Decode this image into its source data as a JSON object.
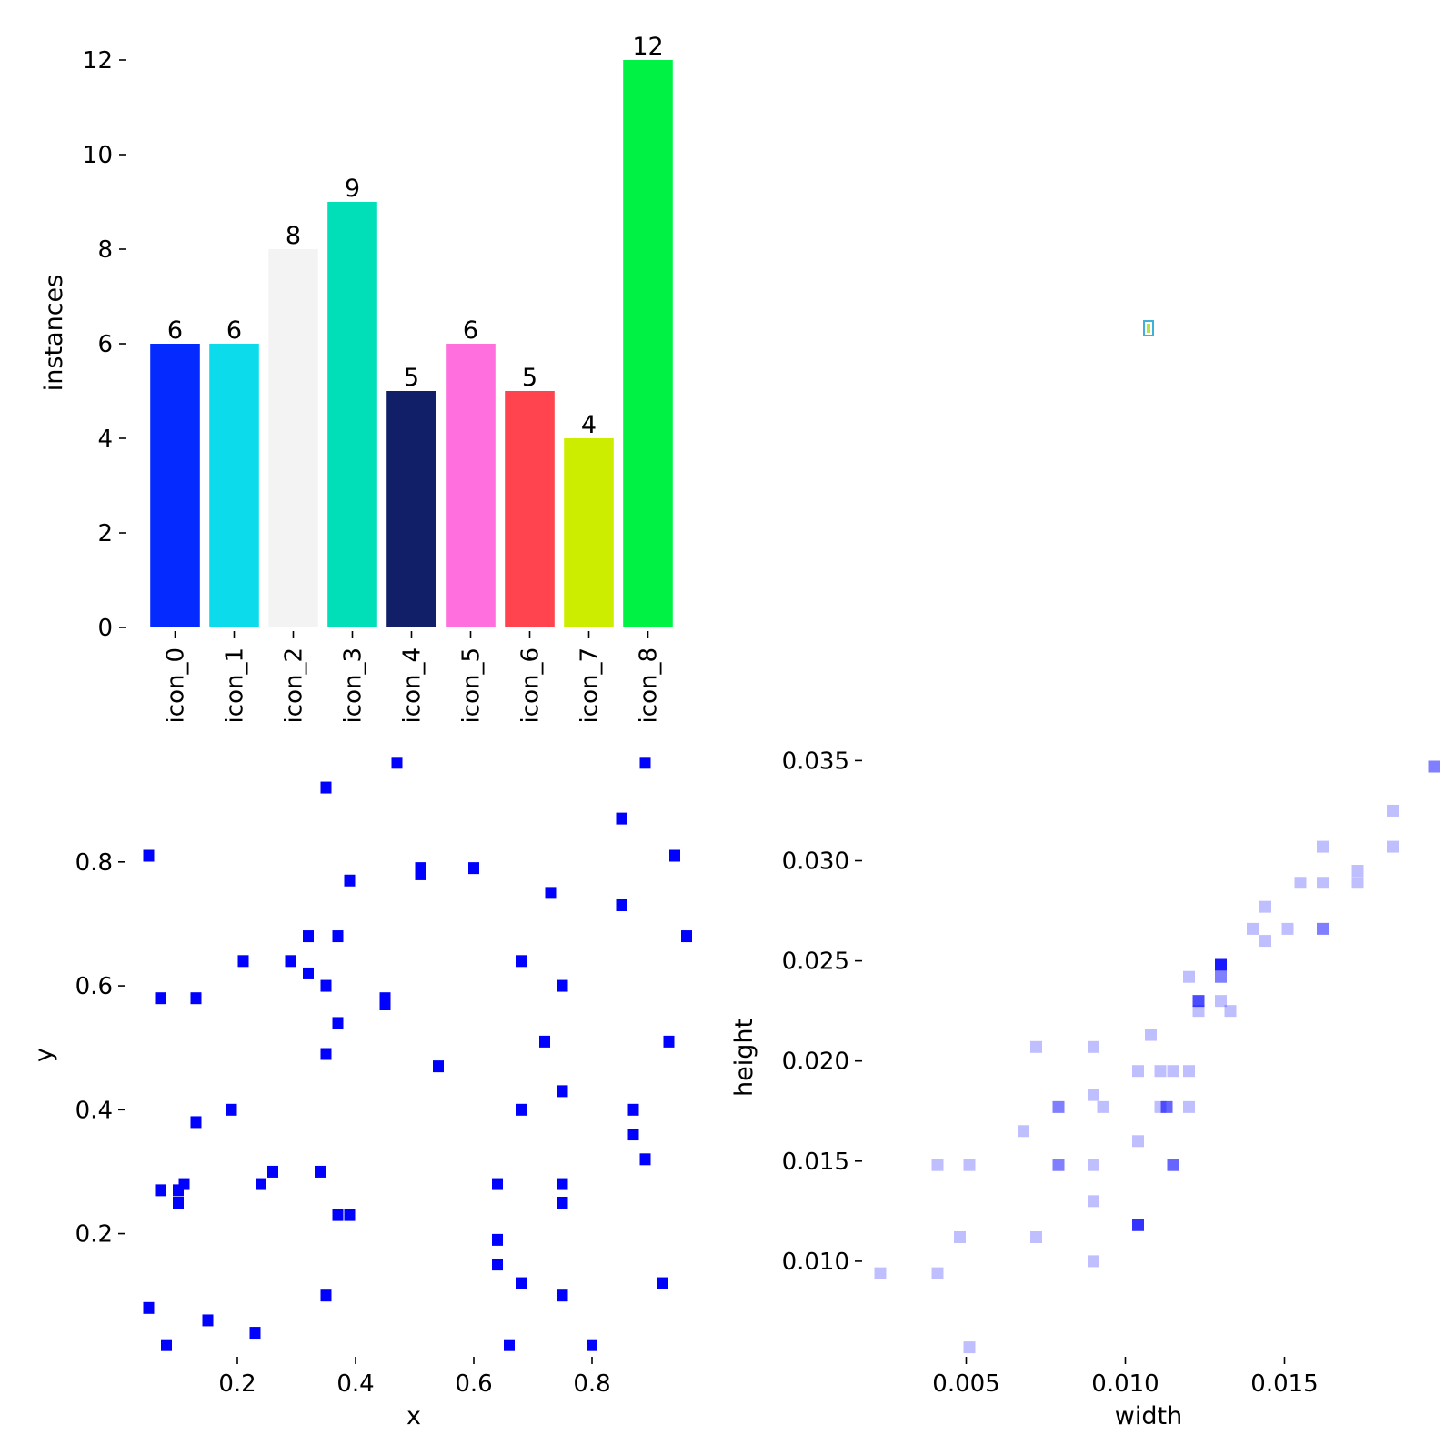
{
  "chart_data": [
    {
      "type": "bar",
      "categories": [
        "icon_0",
        "icon_1",
        "icon_2",
        "icon_3",
        "icon_4",
        "icon_5",
        "icon_6",
        "icon_7",
        "icon_8"
      ],
      "values": [
        6,
        6,
        8,
        9,
        5,
        6,
        5,
        4,
        12
      ],
      "value_labels": [
        "6",
        "6",
        "8",
        "9",
        "5",
        "6",
        "5",
        "4",
        "12"
      ],
      "colors": [
        "#042aff",
        "#0bdbeb",
        "#f3f3f3",
        "#00dfb7",
        "#111f68",
        "#ff6fdd",
        "#ff444f",
        "#cced00",
        "#00f344"
      ],
      "ylabel": "instances",
      "ylim": [
        0,
        12
      ],
      "yticks": [
        0,
        2,
        4,
        6,
        8,
        10,
        12
      ],
      "ytick_labels": [
        "0",
        "2",
        "4",
        "6",
        "8",
        "10",
        "12"
      ],
      "grid": false
    },
    {
      "type": "heatmap",
      "description_marker": "box-outline",
      "marker_color": "#3fb0d8",
      "inner_color": "#b8e04a",
      "axes_visible": false
    },
    {
      "type": "heatmap",
      "color": "#0000ff",
      "xlabel": "x",
      "ylabel": "y",
      "xlim": [
        0.02,
        0.98
      ],
      "ylim": [
        0.01,
        0.97
      ],
      "xticks": [
        0.2,
        0.4,
        0.6,
        0.8
      ],
      "xtick_labels": [
        "0.2",
        "0.4",
        "0.6",
        "0.8"
      ],
      "yticks": [
        0.2,
        0.4,
        0.6,
        0.8
      ],
      "ytick_labels": [
        "0.2",
        "0.4",
        "0.6",
        "0.8"
      ],
      "cells": [
        [
          0.47,
          0.96,
          1
        ],
        [
          0.89,
          0.96,
          1
        ],
        [
          0.35,
          0.92,
          1
        ],
        [
          0.85,
          0.87,
          1
        ],
        [
          0.05,
          0.81,
          1
        ],
        [
          0.94,
          0.81,
          1
        ],
        [
          0.51,
          0.79,
          1
        ],
        [
          0.6,
          0.79,
          1
        ],
        [
          0.51,
          0.78,
          1
        ],
        [
          0.39,
          0.77,
          1
        ],
        [
          0.73,
          0.75,
          1
        ],
        [
          0.85,
          0.73,
          1
        ],
        [
          0.32,
          0.68,
          1
        ],
        [
          0.37,
          0.68,
          1
        ],
        [
          0.96,
          0.68,
          1
        ],
        [
          0.21,
          0.64,
          1
        ],
        [
          0.29,
          0.64,
          1
        ],
        [
          0.68,
          0.64,
          1
        ],
        [
          0.32,
          0.62,
          1
        ],
        [
          0.35,
          0.6,
          1
        ],
        [
          0.75,
          0.6,
          1
        ],
        [
          0.07,
          0.58,
          1
        ],
        [
          0.13,
          0.58,
          1
        ],
        [
          0.45,
          0.58,
          1
        ],
        [
          0.45,
          0.57,
          1
        ],
        [
          0.37,
          0.54,
          1
        ],
        [
          0.72,
          0.51,
          1
        ],
        [
          0.93,
          0.51,
          1
        ],
        [
          0.35,
          0.49,
          1
        ],
        [
          0.54,
          0.47,
          1
        ],
        [
          0.75,
          0.43,
          1
        ],
        [
          0.19,
          0.4,
          1
        ],
        [
          0.68,
          0.4,
          1
        ],
        [
          0.87,
          0.4,
          1
        ],
        [
          0.13,
          0.38,
          1
        ],
        [
          0.87,
          0.36,
          1
        ],
        [
          0.89,
          0.32,
          1
        ],
        [
          0.26,
          0.3,
          1
        ],
        [
          0.34,
          0.3,
          1
        ],
        [
          0.11,
          0.28,
          1
        ],
        [
          0.24,
          0.28,
          1
        ],
        [
          0.64,
          0.28,
          1
        ],
        [
          0.75,
          0.28,
          1
        ],
        [
          0.07,
          0.27,
          1
        ],
        [
          0.1,
          0.27,
          1
        ],
        [
          0.1,
          0.25,
          1
        ],
        [
          0.75,
          0.25,
          1
        ],
        [
          0.37,
          0.23,
          1
        ],
        [
          0.39,
          0.23,
          1
        ],
        [
          0.64,
          0.19,
          1
        ],
        [
          0.64,
          0.15,
          1
        ],
        [
          0.68,
          0.12,
          1
        ],
        [
          0.92,
          0.12,
          1
        ],
        [
          0.35,
          0.1,
          1
        ],
        [
          0.75,
          0.1,
          1
        ],
        [
          0.05,
          0.08,
          1
        ],
        [
          0.15,
          0.06,
          1
        ],
        [
          0.23,
          0.04,
          1
        ],
        [
          0.08,
          0.02,
          1
        ],
        [
          0.66,
          0.02,
          1
        ],
        [
          0.8,
          0.02,
          1
        ]
      ],
      "grid": false
    },
    {
      "type": "heatmap",
      "color": "#0000ff",
      "xlabel": "width",
      "ylabel": "height",
      "xlim": [
        0.0019,
        0.0197
      ],
      "ylim": [
        0.0055,
        0.0352
      ],
      "xticks": [
        0.005,
        0.01,
        0.015
      ],
      "xtick_labels": [
        "0.005",
        "0.010",
        "0.015"
      ],
      "yticks": [
        0.01,
        0.015,
        0.02,
        0.025,
        0.03,
        0.035
      ],
      "ytick_labels": [
        "0.010",
        "0.015",
        "0.020",
        "0.025",
        "0.030",
        "0.035"
      ],
      "cells": [
        [
          0.0197,
          0.0347,
          0.5
        ],
        [
          0.0184,
          0.0325,
          0.25
        ],
        [
          0.0162,
          0.0307,
          0.25
        ],
        [
          0.0184,
          0.0307,
          0.25
        ],
        [
          0.0173,
          0.0295,
          0.25
        ],
        [
          0.0155,
          0.0289,
          0.25
        ],
        [
          0.0162,
          0.0289,
          0.25
        ],
        [
          0.0173,
          0.0289,
          0.25
        ],
        [
          0.0144,
          0.0277,
          0.25
        ],
        [
          0.014,
          0.0266,
          0.25
        ],
        [
          0.0151,
          0.0266,
          0.25
        ],
        [
          0.0162,
          0.0266,
          0.5
        ],
        [
          0.0144,
          0.026,
          0.25
        ],
        [
          0.013,
          0.0248,
          0.9
        ],
        [
          0.012,
          0.0242,
          0.25
        ],
        [
          0.013,
          0.0242,
          0.5
        ],
        [
          0.0123,
          0.023,
          0.7
        ],
        [
          0.013,
          0.023,
          0.25
        ],
        [
          0.0123,
          0.0225,
          0.25
        ],
        [
          0.0133,
          0.0225,
          0.25
        ],
        [
          0.0072,
          0.0207,
          0.25
        ],
        [
          0.009,
          0.0207,
          0.25
        ],
        [
          0.0108,
          0.0213,
          0.25
        ],
        [
          0.0104,
          0.0195,
          0.25
        ],
        [
          0.0111,
          0.0195,
          0.25
        ],
        [
          0.0115,
          0.0195,
          0.25
        ],
        [
          0.012,
          0.0195,
          0.25
        ],
        [
          0.009,
          0.0183,
          0.25
        ],
        [
          0.0079,
          0.0177,
          0.5
        ],
        [
          0.0093,
          0.0177,
          0.25
        ],
        [
          0.0111,
          0.0177,
          0.25
        ],
        [
          0.0113,
          0.0177,
          0.6
        ],
        [
          0.012,
          0.0177,
          0.25
        ],
        [
          0.0068,
          0.0165,
          0.25
        ],
        [
          0.0104,
          0.016,
          0.25
        ],
        [
          0.0041,
          0.0148,
          0.25
        ],
        [
          0.0051,
          0.0148,
          0.25
        ],
        [
          0.0079,
          0.0148,
          0.5
        ],
        [
          0.009,
          0.0148,
          0.25
        ],
        [
          0.0115,
          0.0148,
          0.6
        ],
        [
          0.009,
          0.013,
          0.25
        ],
        [
          0.0104,
          0.0118,
          0.8
        ],
        [
          0.0048,
          0.0112,
          0.25
        ],
        [
          0.0072,
          0.0112,
          0.25
        ],
        [
          0.009,
          0.01,
          0.25
        ],
        [
          0.0023,
          0.0094,
          0.25
        ],
        [
          0.0041,
          0.0094,
          0.25
        ],
        [
          0.0051,
          0.0057,
          0.25
        ]
      ],
      "grid": false
    }
  ]
}
